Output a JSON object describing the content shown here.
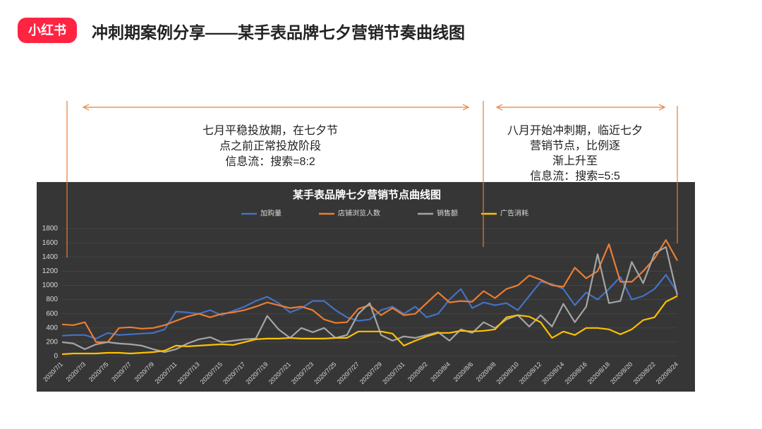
{
  "header": {
    "logo": "小红书",
    "title": "冲刺期案例分享——某手表品牌七夕营销节奏曲线图"
  },
  "annotations": [
    {
      "lines": [
        "七月平稳投放期，在七夕节",
        "点之前正常投放阶段",
        "信息流：搜索=8:2"
      ]
    },
    {
      "lines": [
        "八月开始冲刺期，临近七夕",
        "营销节点，比例逐",
        "渐上升至",
        "信息流：搜索=5:5"
      ]
    }
  ],
  "chart_data": {
    "type": "line",
    "title": "某手表品牌七夕营销节点曲线图",
    "categories": [
      "2020/7/1",
      null,
      "2020/7/3",
      null,
      "2020/7/5",
      null,
      "2020/7/7",
      null,
      "2020/7/9",
      null,
      "2020/7/11",
      null,
      "2020/7/13",
      null,
      "2020/7/15",
      null,
      "2020/7/17",
      null,
      "2020/7/19",
      null,
      "2020/7/21",
      null,
      "2020/7/23",
      null,
      "2020/7/25",
      null,
      "2020/7/27",
      null,
      "2020/7/29",
      null,
      "2020/7/31",
      null,
      "2020/8/2",
      null,
      "2020/8/4",
      null,
      "2020/8/6",
      null,
      "2020/8/8",
      null,
      "2020/8/10",
      null,
      "2020/8/12",
      null,
      "2020/8/14",
      null,
      "2020/8/16",
      null,
      "2020/8/18",
      null,
      "2020/8/20",
      null,
      "2020/8/22",
      null,
      "2020/8/24"
    ],
    "series": [
      {
        "name": "加购量",
        "color": "#4472c4",
        "values": [
          290,
          300,
          300,
          250,
          330,
          300,
          310,
          320,
          330,
          380,
          630,
          620,
          600,
          650,
          580,
          640,
          700,
          780,
          840,
          750,
          620,
          680,
          780,
          780,
          650,
          550,
          500,
          520,
          650,
          700,
          600,
          700,
          550,
          600,
          800,
          950,
          680,
          760,
          720,
          750,
          650,
          850,
          1050,
          1020,
          950,
          720,
          900,
          800,
          950,
          1120,
          800,
          850,
          950,
          1150,
          900
        ]
      },
      {
        "name": "店铺浏览人数",
        "color": "#ed7d31",
        "values": [
          450,
          440,
          480,
          200,
          200,
          400,
          410,
          390,
          400,
          440,
          500,
          560,
          600,
          550,
          600,
          620,
          650,
          700,
          760,
          720,
          680,
          700,
          650,
          520,
          470,
          480,
          670,
          720,
          580,
          680,
          580,
          600,
          750,
          900,
          760,
          780,
          770,
          920,
          820,
          950,
          1000,
          1140,
          1080,
          1000,
          980,
          1250,
          1100,
          1200,
          1580,
          1050,
          1050,
          1200,
          1380,
          1640,
          1350
        ]
      },
      {
        "name": "销售额",
        "color": "#a5a5a5",
        "values": [
          200,
          180,
          100,
          170,
          200,
          180,
          170,
          150,
          100,
          60,
          100,
          180,
          240,
          270,
          200,
          220,
          240,
          250,
          570,
          380,
          260,
          400,
          340,
          400,
          260,
          300,
          600,
          750,
          300,
          220,
          280,
          260,
          300,
          340,
          220,
          380,
          330,
          480,
          400,
          520,
          580,
          420,
          580,
          420,
          740,
          480,
          700,
          1440,
          750,
          780,
          1330,
          1030,
          1450,
          1540,
          860
        ]
      },
      {
        "name": "广告消耗",
        "color": "#ffc000",
        "values": [
          30,
          40,
          40,
          40,
          50,
          50,
          40,
          50,
          60,
          80,
          150,
          140,
          150,
          160,
          170,
          160,
          200,
          240,
          250,
          250,
          260,
          250,
          250,
          250,
          260,
          260,
          350,
          350,
          350,
          320,
          150,
          220,
          280,
          330,
          330,
          360,
          350,
          360,
          380,
          550,
          580,
          560,
          480,
          260,
          350,
          300,
          400,
          400,
          380,
          310,
          380,
          510,
          550,
          770,
          850
        ]
      }
    ],
    "ylim": [
      0,
      1800
    ],
    "yticks": [
      0,
      200,
      400,
      600,
      800,
      1000,
      1200,
      1400,
      1600,
      1800
    ],
    "grid": true
  }
}
